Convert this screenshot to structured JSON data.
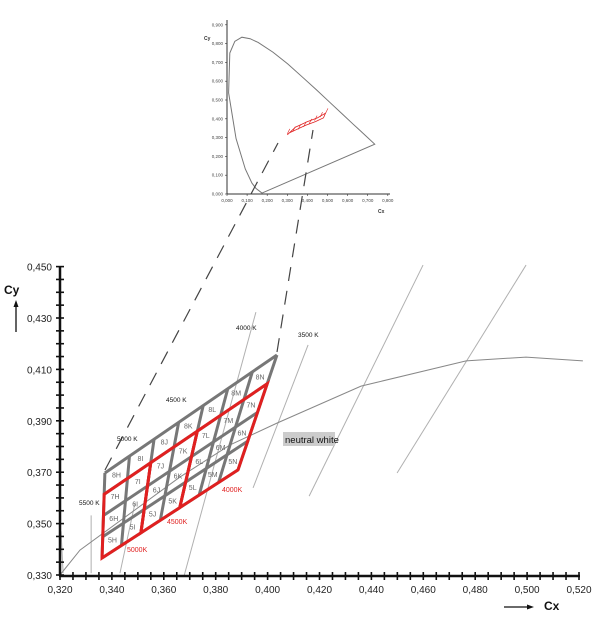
{
  "chart_data": {
    "type": "line",
    "xlabel": "Cx",
    "ylabel": "Cy",
    "xlim": [
      0.32,
      0.52
    ],
    "ylim": [
      0.33,
      0.45
    ],
    "x_ticks": [
      "0,320",
      "0,340",
      "0,360",
      "0,380",
      "0,400",
      "0,420",
      "0,440",
      "0,460",
      "0,480",
      "0,500",
      "0,520"
    ],
    "y_ticks": [
      "0,450",
      "0,430",
      "0,410",
      "0,390",
      "0,370",
      "0,350",
      "0,330"
    ],
    "planckian_locus": [
      [
        0.32,
        0.33
      ],
      [
        0.3277,
        0.3397
      ],
      [
        0.3662,
        0.3681
      ],
      [
        0.3855,
        0.3806
      ],
      [
        0.4036,
        0.3891
      ],
      [
        0.436,
        0.4035
      ],
      [
        0.4765,
        0.4133
      ],
      [
        0.4996,
        0.4148
      ],
      [
        0.5215,
        0.4133
      ]
    ],
    "isotherm_lines": [
      [
        [
          0.3204,
          0.347
        ],
        [
          0.3212,
          0.3307
        ]
      ],
      [
        [
          0.332,
          0.3532
        ],
        [
          0.332,
          0.3307
        ]
      ],
      [
        [
          0.3431,
          0.3307
        ],
        [
          0.3489,
          0.358
        ]
      ],
      [
        [
          0.3678,
          0.3296
        ],
        [
          0.3955,
          0.4323
        ]
      ],
      [
        [
          0.3944,
          0.3639
        ],
        [
          0.4156,
          0.4195
        ]
      ],
      [
        [
          0.416,
          0.3607
        ],
        [
          0.4599,
          0.4506
        ]
      ],
      [
        [
          0.4499,
          0.3697
        ],
        [
          0.4996,
          0.4506
        ]
      ]
    ],
    "cct_labels": [
      "5500 K",
      "5000 K",
      "4500 K",
      "4000 K",
      "3500 K"
    ],
    "bin_labels_red": [
      "5000K",
      "4500K",
      "4000K"
    ],
    "annotation": "neutral white",
    "bin_grid": {
      "columns": [
        "H",
        "I",
        "J",
        "K",
        "L",
        "M",
        "N"
      ],
      "rows": [
        "5",
        "6",
        "7",
        "8"
      ],
      "corners": {
        "bottom_left": [
          0.3362,
          0.3366
        ],
        "bottom_right": [
          0.3886,
          0.3709
        ],
        "top_left": [
          0.3373,
          0.3697
        ],
        "top_right": [
          0.4036,
          0.4156
        ]
      },
      "red_groups": [
        {
          "label": "5000K",
          "cols": [
            "H",
            "I"
          ],
          "rows": [
            "5",
            "6",
            "7"
          ]
        },
        {
          "label": "4500K",
          "cols": [
            "J",
            "K"
          ],
          "rows": [
            "5",
            "6",
            "7"
          ]
        },
        {
          "label": "4000K",
          "cols": [
            "L",
            "M",
            "N"
          ],
          "rows": [
            "5",
            "6",
            "7"
          ]
        }
      ]
    },
    "inset": {
      "xlabel": "Cx",
      "ylabel": "Cy",
      "xlim": [
        0,
        0.8
      ],
      "ylim": [
        0,
        0.9
      ],
      "x_ticks": [
        "0,000",
        "0,100",
        "0,200",
        "0,300",
        "0,400",
        "0,500",
        "0,600",
        "0,700",
        "0,800"
      ],
      "y_ticks": [
        "0,000",
        "0,100",
        "0,200",
        "0,300",
        "0,400",
        "0,500",
        "0,600",
        "0,700",
        "0,800",
        "0,900"
      ],
      "spectral_locus": [
        [
          0.1741,
          0.005
        ],
        [
          0.144,
          0.03
        ],
        [
          0.124,
          0.058
        ],
        [
          0.091,
          0.133
        ],
        [
          0.045,
          0.295
        ],
        [
          0.008,
          0.538
        ],
        [
          0.014,
          0.75
        ],
        [
          0.039,
          0.812
        ],
        [
          0.074,
          0.834
        ],
        [
          0.115,
          0.826
        ],
        [
          0.155,
          0.806
        ],
        [
          0.229,
          0.754
        ],
        [
          0.302,
          0.692
        ],
        [
          0.373,
          0.624
        ],
        [
          0.444,
          0.555
        ],
        [
          0.512,
          0.487
        ],
        [
          0.575,
          0.424
        ],
        [
          0.627,
          0.372
        ],
        [
          0.666,
          0.334
        ],
        [
          0.692,
          0.308
        ],
        [
          0.735,
          0.265
        ],
        [
          0.1741,
          0.005
        ]
      ],
      "highlight_region": [
        [
          0.3,
          0.315
        ],
        [
          0.34,
          0.355
        ],
        [
          0.4,
          0.385
        ],
        [
          0.45,
          0.405
        ],
        [
          0.49,
          0.43
        ],
        [
          0.48,
          0.405
        ],
        [
          0.44,
          0.385
        ],
        [
          0.39,
          0.365
        ],
        [
          0.31,
          0.325
        ]
      ]
    },
    "colors": {
      "grid": "#777777",
      "bins": "#e02020",
      "locus": "#888888",
      "isotherm": "#b0b0b0",
      "annotation_bg": "#cccccc"
    }
  }
}
